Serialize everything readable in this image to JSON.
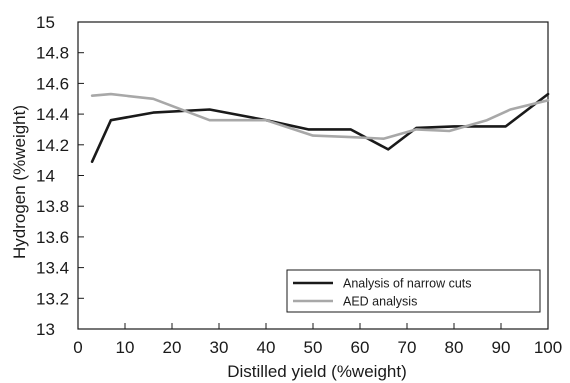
{
  "chart_data": {
    "type": "line",
    "title": "",
    "xlabel": "Distilled yield (%weight)",
    "ylabel": "Hydrogen (%weight)",
    "xlim": [
      0,
      100
    ],
    "ylim": [
      13,
      15
    ],
    "xticks": [
      0,
      10,
      20,
      30,
      40,
      50,
      60,
      70,
      80,
      90,
      100
    ],
    "yticks": [
      13,
      13.2,
      13.4,
      13.6,
      13.8,
      14,
      14.2,
      14.4,
      14.6,
      14.8,
      15
    ],
    "grid": false,
    "legend_position": "bottom-right",
    "series": [
      {
        "name": "Analysis of narrow cuts",
        "color": "#1a1a1a",
        "x": [
          3,
          7,
          16,
          28,
          40,
          49,
          58,
          66,
          72,
          80,
          91,
          100
        ],
        "y": [
          14.09,
          14.36,
          14.41,
          14.43,
          14.36,
          14.3,
          14.3,
          14.17,
          14.31,
          14.32,
          14.32,
          14.53
        ]
      },
      {
        "name": "AED analysis",
        "color": "#a8a8a8",
        "x": [
          3,
          7,
          16,
          28,
          40,
          50,
          58,
          65,
          72,
          79,
          87,
          92,
          100
        ],
        "y": [
          14.52,
          14.53,
          14.5,
          14.36,
          14.36,
          14.26,
          14.25,
          14.24,
          14.3,
          14.29,
          14.36,
          14.43,
          14.49
        ]
      }
    ]
  }
}
